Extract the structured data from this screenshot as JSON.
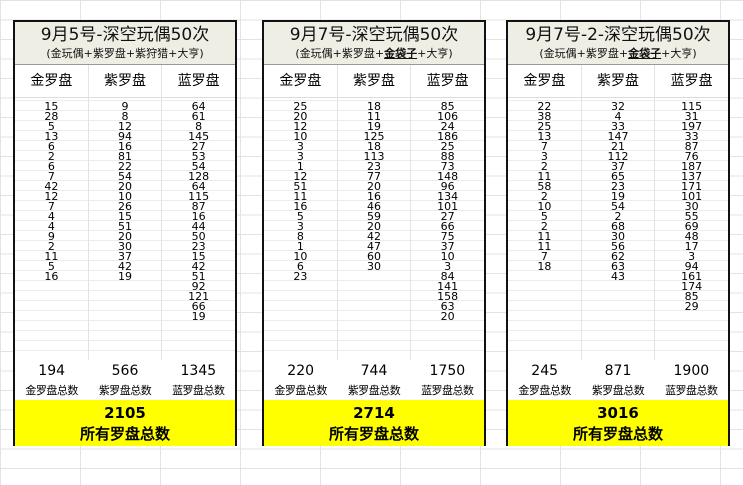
{
  "accent_yellow": "#ffff00",
  "header_bg": "#efeee5",
  "panels": [
    {
      "title": "9月5号-深空玩偶50次",
      "subtitle": [
        {
          "text": "(金玩偶+紫罗盘+紫狩猎+大亨)",
          "bold": false
        }
      ],
      "columns": [
        "金罗盘",
        "紫罗盘",
        "蓝罗盘"
      ],
      "values": [
        [
          "15",
          "28",
          "5",
          "13",
          "6",
          "2",
          "6",
          "7",
          "42",
          "12",
          "7",
          "4",
          "4",
          "9",
          "2",
          "11",
          "5",
          "16"
        ],
        [
          "9",
          "8",
          "12",
          "94",
          "16",
          "81",
          "22",
          "54",
          "20",
          "10",
          "26",
          "15",
          "51",
          "20",
          "30",
          "37",
          "42",
          "19"
        ],
        [
          "64",
          "61",
          "8",
          "145",
          "27",
          "53",
          "54",
          "128",
          "64",
          "115",
          "87",
          "16",
          "44",
          "50",
          "23",
          "15",
          "42",
          "51",
          "92",
          "121",
          "66",
          "19"
        ]
      ],
      "totals": [
        "194",
        "566",
        "1345"
      ],
      "total_labels": [
        "金罗盘总数",
        "紫罗盘总数",
        "蓝罗盘总数"
      ],
      "grand_total": "2105",
      "grand_label": "所有罗盘总数"
    },
    {
      "title": "9月7号-深空玩偶50次",
      "subtitle": [
        {
          "text": "(金玩偶+紫罗盘+",
          "bold": false
        },
        {
          "text": "金袋子",
          "bold": true
        },
        {
          "text": "+大亨)",
          "bold": false
        }
      ],
      "columns": [
        "金罗盘",
        "紫罗盘",
        "蓝罗盘"
      ],
      "values": [
        [
          "25",
          "20",
          "12",
          "10",
          "3",
          "3",
          "1",
          "12",
          "51",
          "11",
          "16",
          "5",
          "3",
          "8",
          "1",
          "10",
          "6",
          "23"
        ],
        [
          "18",
          "11",
          "19",
          "125",
          "18",
          "113",
          "23",
          "77",
          "20",
          "16",
          "46",
          "59",
          "20",
          "42",
          "47",
          "60",
          "30"
        ],
        [
          "85",
          "106",
          "24",
          "186",
          "25",
          "88",
          "73",
          "148",
          "96",
          "134",
          "101",
          "27",
          "66",
          "75",
          "37",
          "10",
          "3",
          "84",
          "141",
          "158",
          "63",
          "20"
        ]
      ],
      "totals": [
        "220",
        "744",
        "1750"
      ],
      "total_labels": [
        "金罗盘总数",
        "紫罗盘总数",
        "蓝罗盘总数"
      ],
      "grand_total": "2714",
      "grand_label": "所有罗盘总数"
    },
    {
      "title": "9月7号-2-深空玩偶50次",
      "subtitle": [
        {
          "text": "(金玩偶+紫罗盘+",
          "bold": false
        },
        {
          "text": "金袋子",
          "bold": true
        },
        {
          "text": "+大亨)",
          "bold": false
        }
      ],
      "columns": [
        "金罗盘",
        "紫罗盘",
        "蓝罗盘"
      ],
      "values": [
        [
          "22",
          "38",
          "25",
          "13",
          "7",
          "3",
          "2",
          "11",
          "58",
          "2",
          "10",
          "5",
          "2",
          "11",
          "11",
          "7",
          "18"
        ],
        [
          "32",
          "4",
          "33",
          "147",
          "21",
          "112",
          "37",
          "65",
          "23",
          "19",
          "54",
          "2",
          "68",
          "30",
          "56",
          "62",
          "63",
          "43"
        ],
        [
          "115",
          "31",
          "197",
          "33",
          "87",
          "76",
          "187",
          "137",
          "171",
          "101",
          "30",
          "55",
          "69",
          "48",
          "17",
          "3",
          "94",
          "161",
          "174",
          "85",
          "29"
        ]
      ],
      "totals": [
        "245",
        "871",
        "1900"
      ],
      "total_labels": [
        "金罗盘总数",
        "紫罗盘总数",
        "蓝罗盘总数"
      ],
      "grand_total": "3016",
      "grand_label": "所有罗盘总数"
    }
  ]
}
